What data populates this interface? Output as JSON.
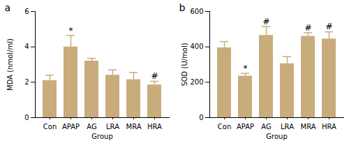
{
  "chart_data": [
    {
      "type": "bar",
      "title": "a",
      "categories": [
        "Con",
        "APAP",
        "AG",
        "LRA",
        "MRA",
        "HRA"
      ],
      "values": [
        2.1,
        4.0,
        3.2,
        2.4,
        2.15,
        1.85
      ],
      "errors": [
        0.3,
        0.65,
        0.15,
        0.3,
        0.4,
        0.2
      ],
      "significance": [
        null,
        "*",
        null,
        null,
        null,
        "#"
      ],
      "color": "#c9ac7c",
      "x_label": "Group",
      "y_label": "MDA (nmol/ml)",
      "ylim": [
        0,
        6
      ],
      "yticks": [
        0,
        2,
        4,
        6
      ]
    },
    {
      "type": "bar",
      "title": "b",
      "categories": [
        "Con",
        "APAP",
        "AG",
        "LRA",
        "MRA",
        "HRA"
      ],
      "values": [
        395,
        235,
        465,
        305,
        460,
        445
      ],
      "errors": [
        35,
        15,
        50,
        40,
        20,
        40
      ],
      "significance": [
        null,
        "*",
        "#",
        null,
        "#",
        "#"
      ],
      "color": "#c9ac7c",
      "x_label": "Group",
      "y_label": "SOD (U/mol)",
      "ylim": [
        0,
        600
      ],
      "yticks": [
        0,
        200,
        400,
        600
      ]
    }
  ]
}
